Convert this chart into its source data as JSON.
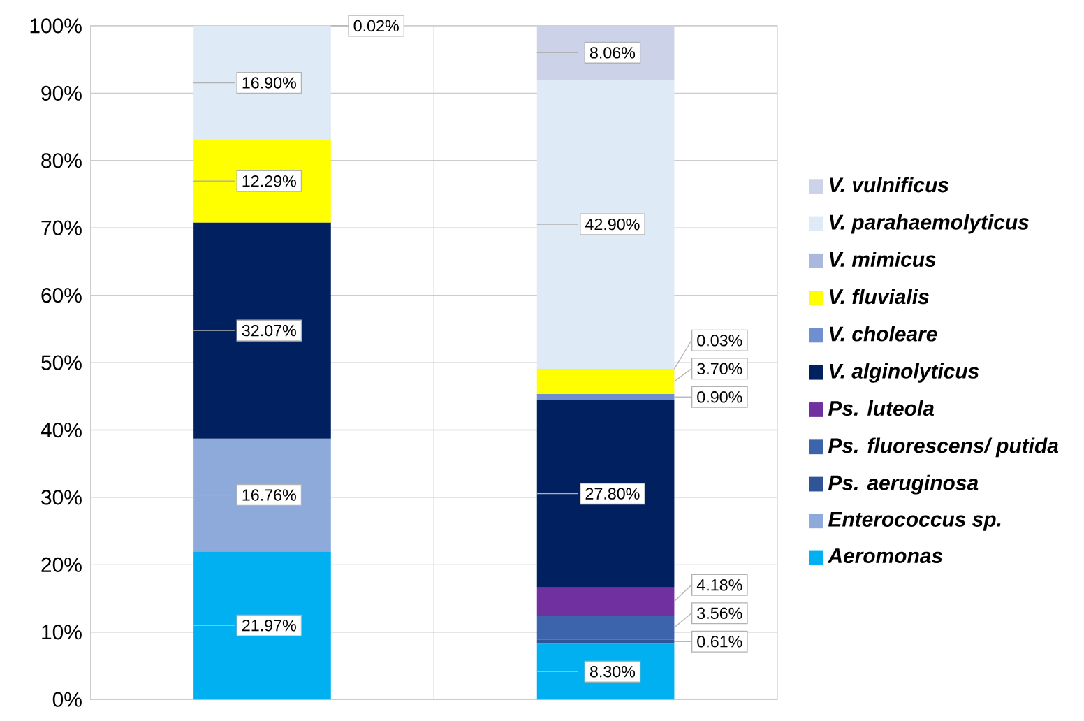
{
  "chart_data": {
    "type": "bar",
    "stacked": true,
    "categories": [
      null,
      null
    ],
    "ylim": [
      0,
      100
    ],
    "yticks": [
      {
        "value": 0,
        "label": "0%"
      },
      {
        "value": 10,
        "label": "10%"
      },
      {
        "value": 20,
        "label": "20%"
      },
      {
        "value": 30,
        "label": "30%"
      },
      {
        "value": 40,
        "label": "40%"
      },
      {
        "value": 50,
        "label": "50%"
      },
      {
        "value": 60,
        "label": "60%"
      },
      {
        "value": 70,
        "label": "70%"
      },
      {
        "value": 80,
        "label": "80%"
      },
      {
        "value": 90,
        "label": "90%"
      },
      {
        "value": 100,
        "label": "100%"
      }
    ],
    "grid": "y",
    "legend": "right",
    "tick_labels": "y",
    "series": [
      {
        "name": "Aeromonas",
        "color": "#00b0f0",
        "values": [
          21.97,
          8.3
        ],
        "value_labels": [
          "21.97%",
          "8.30%"
        ]
      },
      {
        "name": "Enterococcus sp.",
        "color": "#8eaadb",
        "values": [
          16.76,
          null
        ],
        "value_labels": [
          "16.76%",
          null
        ]
      },
      {
        "name": "Ps. aeruginosa",
        "color": "#2f5597",
        "values": [
          null,
          0.61
        ],
        "value_labels": [
          null,
          "0.61%"
        ]
      },
      {
        "name": "Ps. fluorescens/ putida",
        "color": "#3b64ad",
        "values": [
          null,
          3.56
        ],
        "value_labels": [
          null,
          "3.56%"
        ]
      },
      {
        "name": "Ps. luteola",
        "color": "#7030a0",
        "values": [
          null,
          4.18
        ],
        "value_labels": [
          null,
          "4.18%"
        ]
      },
      {
        "name": "V. alginolyticus",
        "color": "#002060",
        "values": [
          32.07,
          27.8
        ],
        "value_labels": [
          "32.07%",
          "27.80%"
        ]
      },
      {
        "name": "V. choleare",
        "color": "#6f8fcf",
        "values": [
          null,
          0.9
        ],
        "value_labels": [
          null,
          "0.90%"
        ]
      },
      {
        "name": "V. fluvialis",
        "color": "#ffff00",
        "values": [
          12.29,
          3.7
        ],
        "value_labels": [
          "12.29%",
          "3.70%"
        ]
      },
      {
        "name": "V. mimicus",
        "color": "#a9b8dc",
        "values": [
          null,
          0.03
        ],
        "value_labels": [
          null,
          "0.03%"
        ]
      },
      {
        "name": "V. parahaemolyticus",
        "color": "#deeaf6",
        "values": [
          16.9,
          42.9
        ],
        "value_labels": [
          "16.90%",
          "42.90%"
        ]
      },
      {
        "name": "V. vulnificus",
        "color": "#ccd2e8",
        "values": [
          0.02,
          8.06
        ],
        "value_labels": [
          "0.02%",
          "8.06%"
        ]
      }
    ]
  }
}
